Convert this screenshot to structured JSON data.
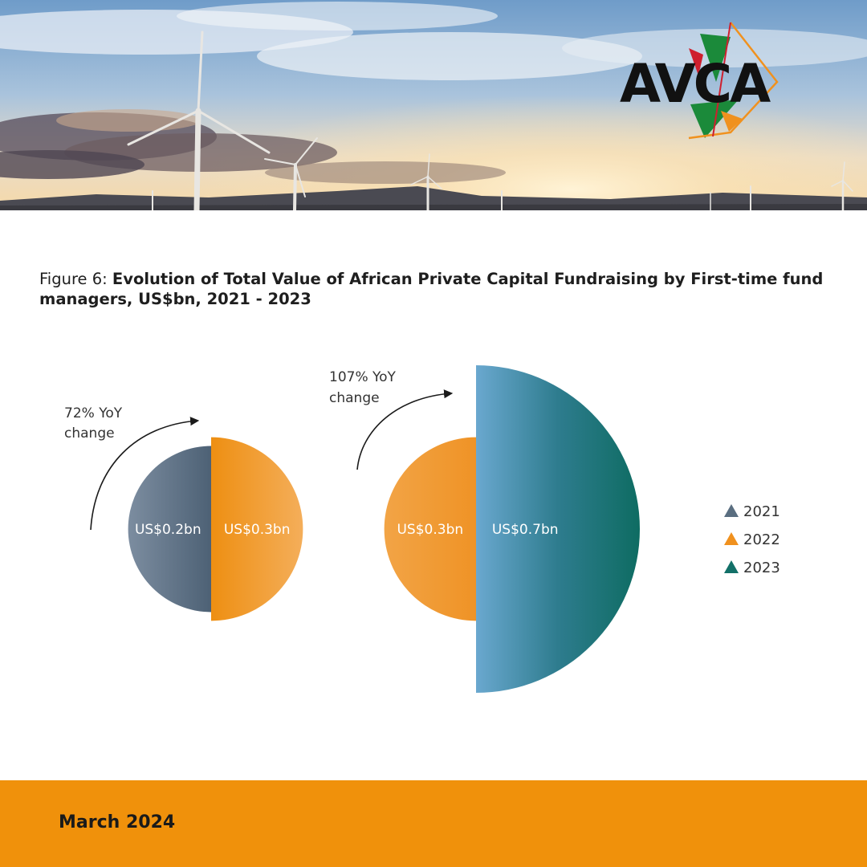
{
  "logo": {
    "text": "AVCA"
  },
  "figure": {
    "prefix": "Figure 6: ",
    "title": "Evolution of Total Value of African Private Capital Fundraising by First-time fund managers, US$bn, 2021 - 2023"
  },
  "chart_data": {
    "type": "half-circle comparison",
    "unit": "US$bn",
    "series": [
      {
        "name": "2021",
        "value": 0.2,
        "label": "US$0.2bn",
        "color": "#5a6e80"
      },
      {
        "name": "2022",
        "value": 0.3,
        "label": "US$0.3bn",
        "color": "#f0911e"
      },
      {
        "name": "2023",
        "value": 0.7,
        "label": "US$0.7bn",
        "color": "#127068"
      }
    ],
    "pairs": [
      {
        "from": "2021",
        "to": "2022",
        "annotation_line1": "72% YoY",
        "annotation_line2": "change"
      },
      {
        "from": "2022",
        "to": "2023",
        "annotation_line1": "107% YoY",
        "annotation_line2": "change"
      }
    ],
    "legend_position": "right"
  },
  "footer": {
    "date": "March 2024"
  }
}
